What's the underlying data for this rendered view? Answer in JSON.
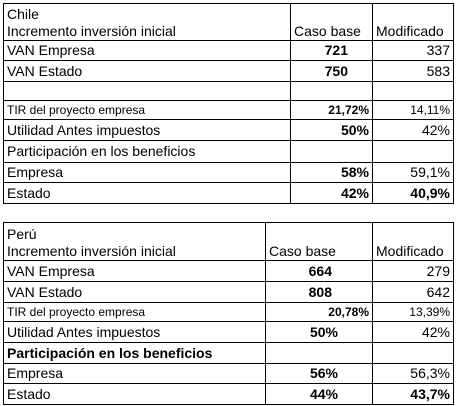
{
  "tables": [
    {
      "header": {
        "country": "Chile",
        "subtitle": "Incremento inversión inicial",
        "col2": "Caso base",
        "col3": "Modificado"
      },
      "rows": [
        [
          "VAN Empresa",
          "721",
          "337"
        ],
        [
          "VAN Estado",
          "750",
          "583"
        ],
        [
          "TIR del proyecto empresa",
          "21,72%",
          "14,11%"
        ],
        [
          "Utilidad Antes impuestos",
          "50%",
          "42%"
        ],
        [
          "Participación en los beneficios"
        ],
        [
          "Empresa",
          "58%",
          "59,1%"
        ],
        [
          "Estado",
          "42%",
          "40,9%"
        ]
      ]
    },
    {
      "header": {
        "country": "Perú",
        "subtitle": "Incremento inversión inicial",
        "col2": "Caso base",
        "col3": "Modificado"
      },
      "rows": [
        [
          "VAN Empresa",
          "664",
          "279"
        ],
        [
          "VAN Estado",
          "808",
          "642"
        ],
        [
          "TIR del proyecto empresa",
          "20,78%",
          "13,39%"
        ],
        [
          "Utilidad Antes impuestos",
          "50%",
          "42%"
        ],
        [
          "Participación en los beneficios"
        ],
        [
          "Empresa",
          "56%",
          "56,3%"
        ],
        [
          "Estado",
          "44%",
          "43,7%"
        ]
      ]
    }
  ]
}
